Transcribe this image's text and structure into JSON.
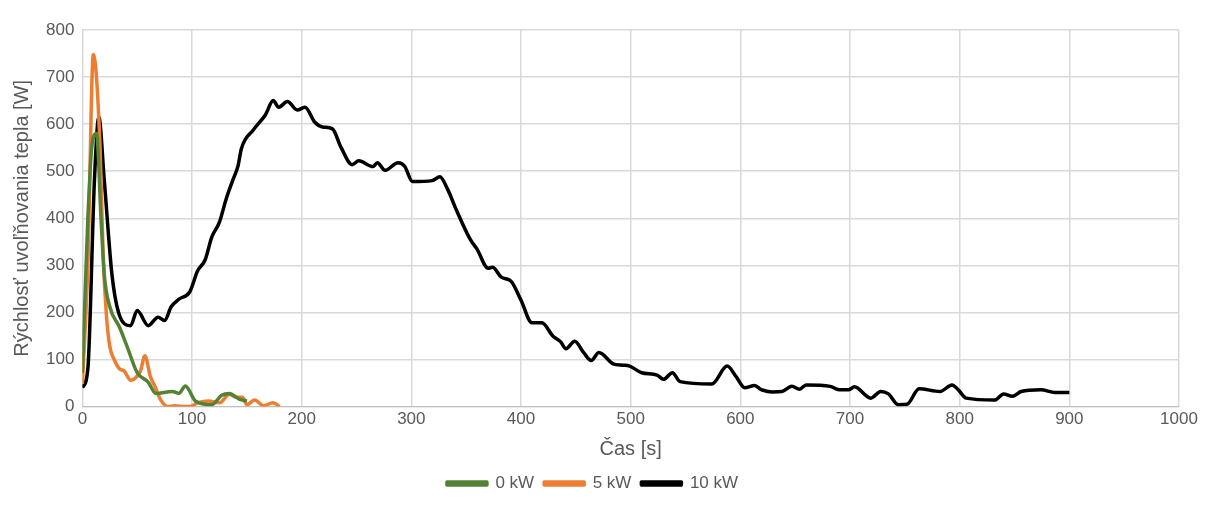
{
  "chart_data": {
    "type": "line",
    "xlabel": "Čas [s]",
    "ylabel": "Rýchlosť uvoľňovania tepla [W]",
    "xlim": [
      0,
      1000
    ],
    "xticks": [
      0,
      100,
      200,
      300,
      400,
      500,
      600,
      700,
      800,
      900,
      1000
    ],
    "ylim": [
      0,
      800
    ],
    "yticks": [
      0,
      100,
      200,
      300,
      400,
      500,
      600,
      700,
      800
    ],
    "grid": true,
    "legend": "bottom",
    "marker": "none",
    "line_style": "solid",
    "series": [
      {
        "name": "0 kW",
        "color": "#548235",
        "x": [
          0,
          5,
          9,
          13,
          17,
          20,
          25,
          34,
          42,
          50,
          60,
          67,
          82,
          88,
          94,
          103,
          118,
          127,
          134,
          143,
          150
        ],
        "values": [
          72,
          400,
          560,
          580,
          400,
          280,
          212,
          168,
          120,
          72,
          52,
          28,
          32,
          28,
          44,
          12,
          4,
          24,
          28,
          16,
          12
        ]
      },
      {
        "name": "5 kW",
        "color": "#ed7d31",
        "x": [
          0,
          5,
          10,
          16,
          19,
          22,
          25,
          29,
          34,
          38,
          44,
          48,
          53,
          57,
          62,
          66,
          71,
          78,
          84,
          94,
          98,
          105,
          115,
          125,
          134,
          140,
          146,
          150,
          157,
          165,
          174,
          180
        ],
        "values": [
          48,
          300,
          748,
          560,
          320,
          192,
          128,
          100,
          80,
          76,
          56,
          60,
          76,
          108,
          64,
          44,
          16,
          0,
          2,
          0,
          0,
          8,
          12,
          8,
          26,
          20,
          20,
          4,
          14,
          2,
          8,
          0
        ]
      },
      {
        "name": "10 kW",
        "color": "#000000",
        "x": [
          0,
          5,
          11,
          15,
          20,
          27,
          33,
          44,
          50,
          60,
          69,
          75,
          81,
          88,
          98,
          105,
          112,
          118,
          125,
          131,
          137,
          142,
          145,
          156,
          167,
          174,
          179,
          187,
          196,
          203,
          212,
          219,
          228,
          236,
          246,
          252,
          265,
          269,
          276,
          288,
          294,
          301,
          319,
          326,
          333,
          341,
          354,
          360,
          370,
          374,
          382,
          391,
          400,
          410,
          419,
          429,
          436,
          441,
          449,
          457,
          464,
          471,
          484,
          493,
          499,
          510,
          524,
          530,
          538,
          545,
          574,
          588,
          596,
          604,
          613,
          619,
          629,
          638,
          647,
          654,
          660,
          682,
          690,
          699,
          704,
          719,
          728,
          735,
          744,
          752,
          763,
          782,
          793,
          799,
          806,
          832,
          840,
          848,
          856,
          874,
          887,
          900
        ],
        "values": [
          40,
          80,
          480,
          615,
          480,
          280,
          200,
          172,
          204,
          172,
          190,
          183,
          212,
          228,
          244,
          288,
          312,
          360,
          392,
          440,
          480,
          512,
          548,
          588,
          620,
          650,
          636,
          648,
          630,
          636,
          604,
          594,
          590,
          550,
          514,
          522,
          510,
          518,
          502,
          518,
          510,
          478,
          480,
          488,
          462,
          418,
          354,
          334,
          294,
          296,
          275,
          266,
          226,
          178,
          178,
          150,
          138,
          123,
          139,
          115,
          98,
          115,
          91,
          88,
          86,
          72,
          67,
          58,
          72,
          53,
          48,
          86,
          64,
          40,
          45,
          36,
          31,
          32,
          43,
          37,
          46,
          43,
          36,
          36,
          42,
          18,
          32,
          27,
          4,
          5,
          38,
          32,
          46,
          35,
          18,
          14,
          27,
          22,
          32,
          36,
          30,
          30
        ]
      }
    ]
  }
}
